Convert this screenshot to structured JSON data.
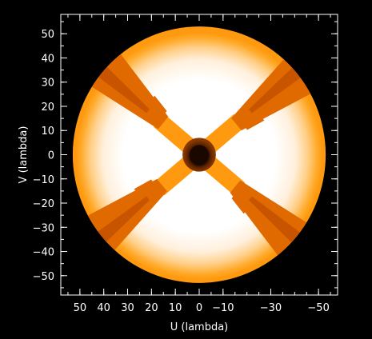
{
  "chart_data": {
    "type": "heatmap",
    "title": "",
    "xlabel": "U (lambda)",
    "ylabel": "V (lambda)",
    "xlim": [
      58,
      -58
    ],
    "ylim": [
      -58,
      58
    ],
    "x_ticks": [
      50,
      40,
      30,
      20,
      10,
      0,
      -10,
      -30,
      -50
    ],
    "x_tick_labels": [
      "50",
      "40",
      "30",
      "20",
      "10",
      "0",
      "−10",
      "−30",
      "−50"
    ],
    "y_ticks": [
      50,
      40,
      30,
      20,
      10,
      0,
      -10,
      -20,
      -30,
      -40,
      -50
    ],
    "y_tick_labels": [
      "50",
      "40",
      "30",
      "20",
      "10",
      "0",
      "−10",
      "−20",
      "−30",
      "−40",
      "−50"
    ],
    "grid": false,
    "features": {
      "outer_radius": 53,
      "inner_hole_radius": 4,
      "inner_ring_radius": 7,
      "arm_angles_deg": [
        40,
        140,
        220,
        320
      ],
      "arm_half_width": 3.5
    },
    "colors": {
      "background": "#000000",
      "hole": "#1a0800",
      "inner_ring": "#6a2800",
      "arm": "#ff9a10",
      "arm_wedge": "#e06a00",
      "arm_wedge_dark": "#c85400",
      "disk_center": "#ffffff",
      "disk_edge": "#ff9a14",
      "frame": "#ffffff"
    }
  }
}
